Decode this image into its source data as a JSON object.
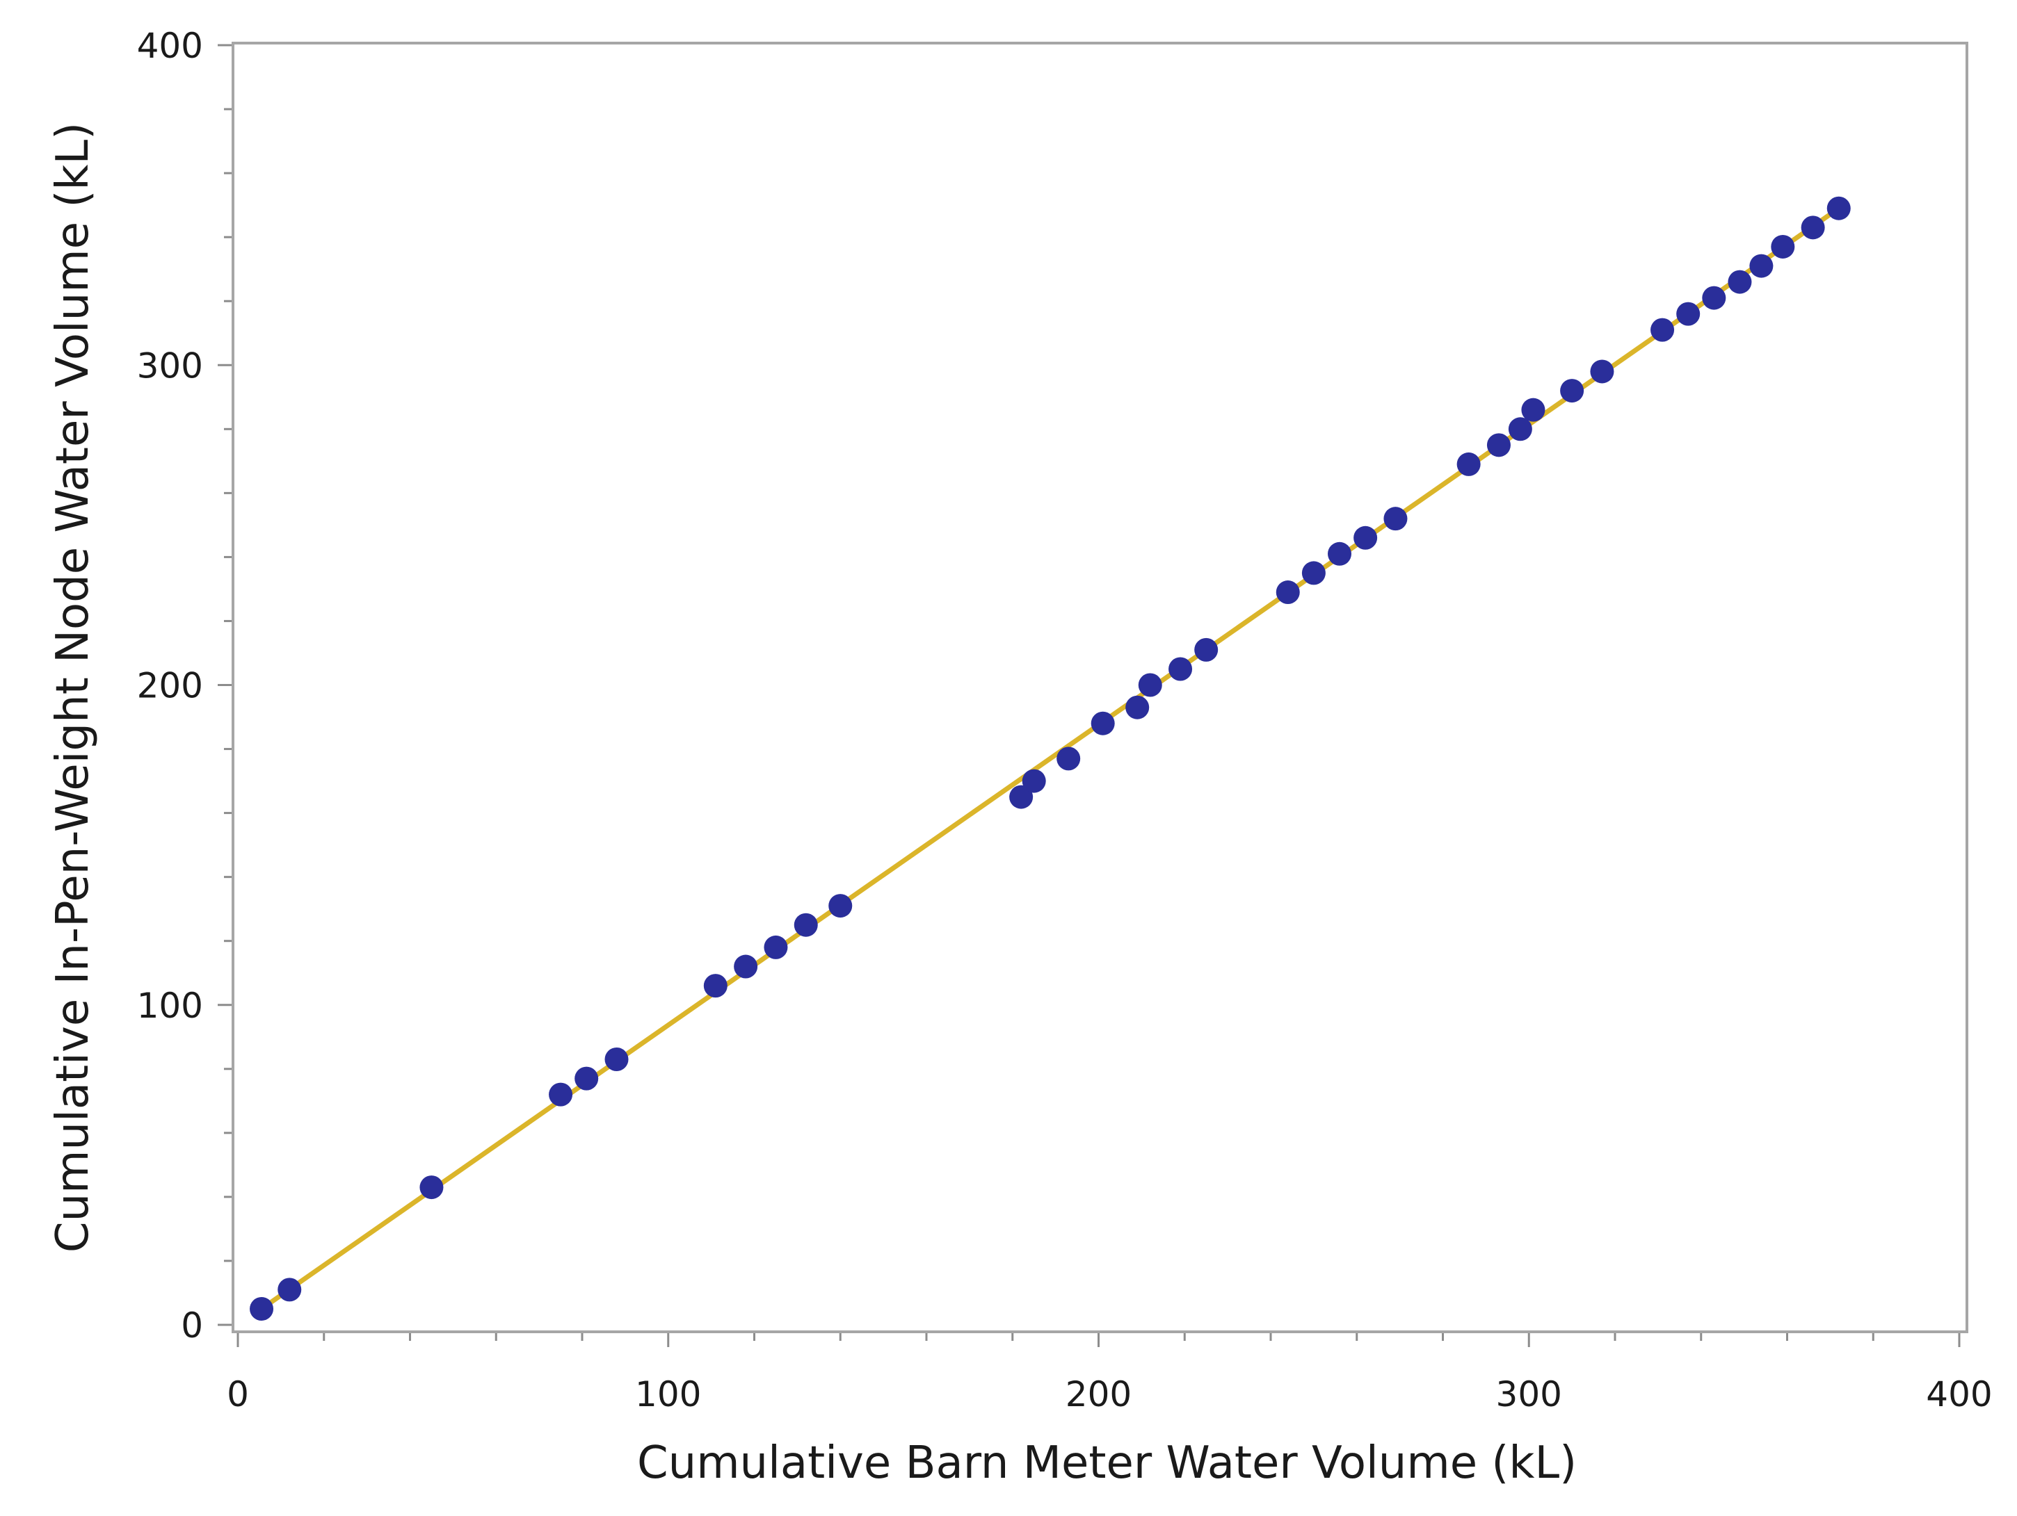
{
  "chart_data": {
    "type": "scatter",
    "title": "",
    "xlabel": "Cumulative Barn Meter Water Volume (kL)",
    "ylabel": "Cumulative In-Pen-Weight Node Water Volume (kL)",
    "xlim": [
      0,
      400
    ],
    "ylim": [
      0,
      400
    ],
    "x_ticks": [
      0,
      100,
      200,
      300,
      400
    ],
    "y_ticks": [
      0,
      100,
      200,
      300,
      400
    ],
    "x_tick_labels": [
      "0",
      "100",
      "200",
      "300",
      "400"
    ],
    "y_tick_labels": [
      "0",
      "100",
      "200",
      "300",
      "400"
    ],
    "x_minor_step": 20,
    "y_minor_step": 20,
    "grid": false,
    "legend": "none",
    "colors": {
      "points": "#2a2e9a",
      "fit_line": "#dbb52a",
      "frame": "#a6a6a6"
    },
    "fit_line": {
      "x": [
        5.5,
        372
      ],
      "y": [
        5,
        349
      ]
    },
    "x": [
      5.5,
      12,
      45,
      75,
      81,
      88,
      111,
      118,
      125,
      132,
      140,
      182,
      185,
      193,
      201,
      209,
      212,
      219,
      225,
      244,
      250,
      256,
      262,
      269,
      286,
      293,
      298,
      301,
      310,
      317,
      331,
      337,
      343,
      349,
      354,
      359,
      366,
      372
    ],
    "y": [
      5,
      11,
      43,
      72,
      77,
      83,
      106,
      112,
      118,
      125,
      131,
      165,
      170,
      177,
      188,
      193,
      200,
      205,
      211,
      229,
      235,
      241,
      246,
      252,
      269,
      275,
      280,
      286,
      292,
      298,
      311,
      316,
      321,
      326,
      331,
      337,
      343,
      349
    ]
  }
}
